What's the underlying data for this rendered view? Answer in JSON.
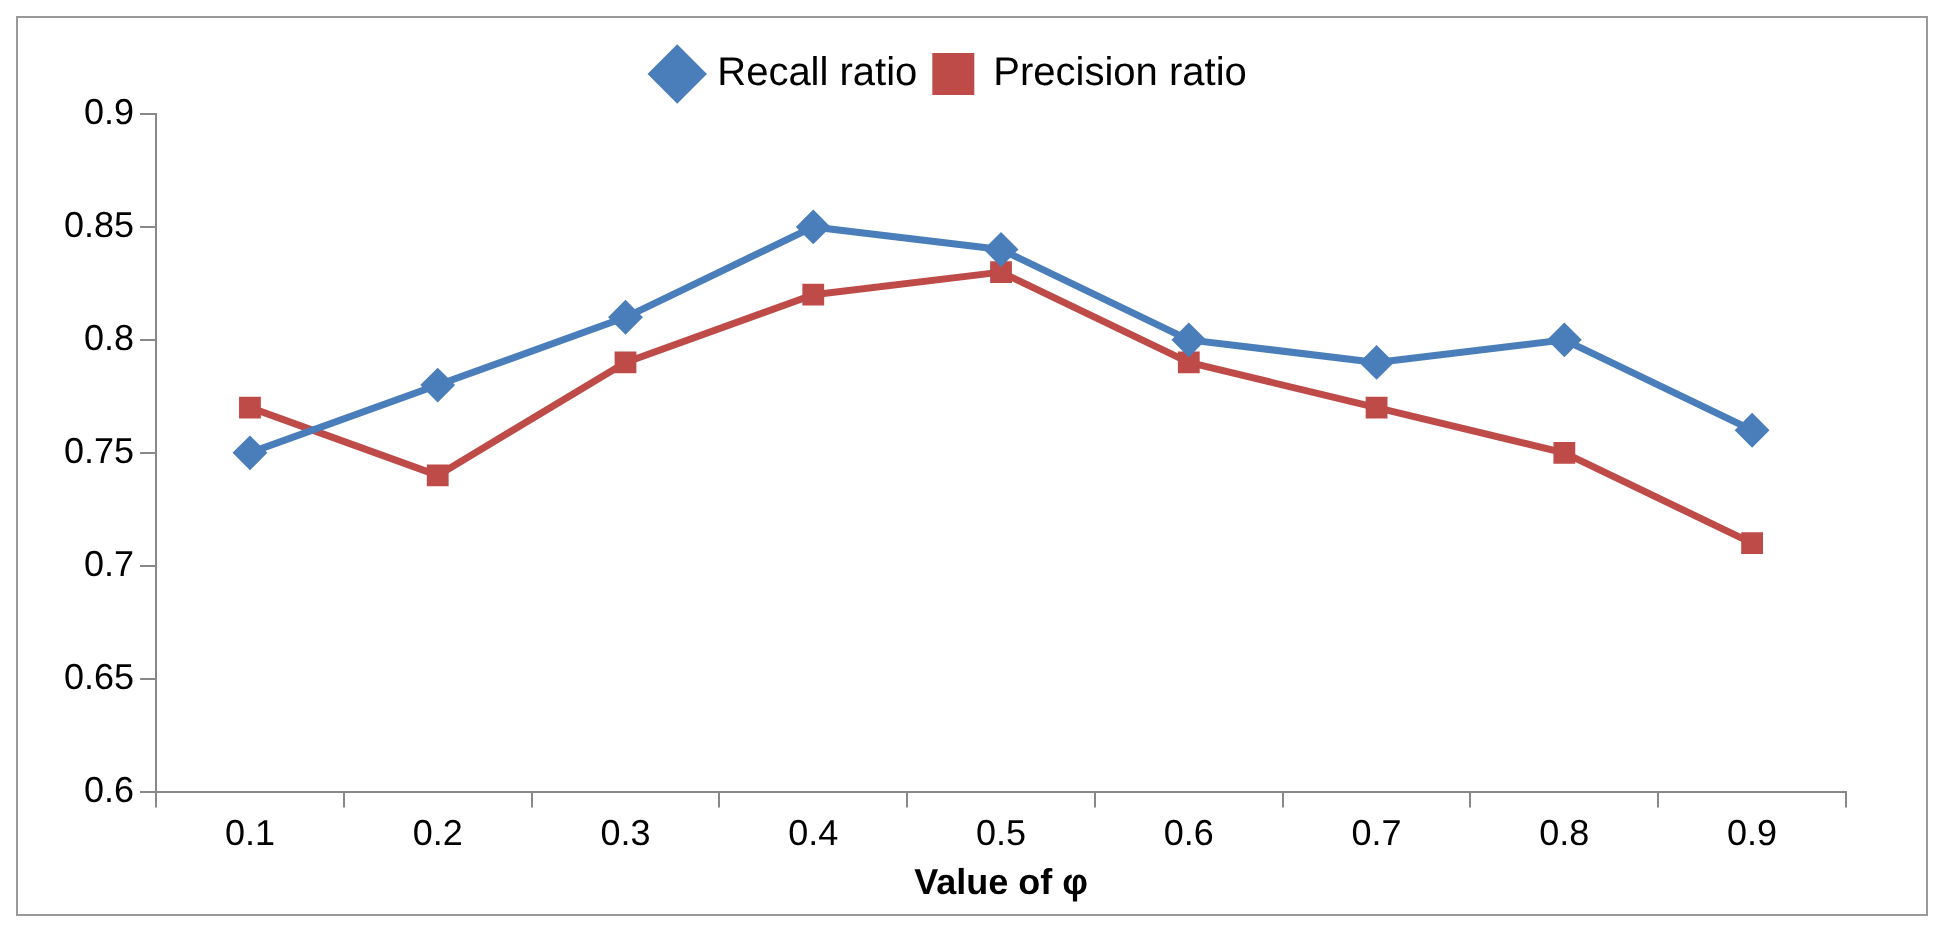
{
  "chart_data": {
    "type": "line",
    "xlabel": "Value of φ",
    "categories": [
      "0.1",
      "0.2",
      "0.3",
      "0.4",
      "0.5",
      "0.6",
      "0.7",
      "0.8",
      "0.9"
    ],
    "series": [
      {
        "name": "Recall ratio",
        "color": "#4a7ebb",
        "marker": "diamond",
        "values": [
          0.75,
          0.78,
          0.81,
          0.85,
          0.84,
          0.8,
          0.79,
          0.8,
          0.76
        ]
      },
      {
        "name": "Precision ratio",
        "color": "#be4b48",
        "marker": "square",
        "values": [
          0.77,
          0.74,
          0.79,
          0.82,
          0.83,
          0.79,
          0.77,
          0.75,
          0.71
        ]
      }
    ],
    "ylim": [
      0.6,
      0.9
    ],
    "yticks": [
      0.6,
      0.65,
      0.7,
      0.75,
      0.8,
      0.85,
      0.9
    ],
    "grid": false,
    "legend": "top",
    "line_style": "solid"
  }
}
